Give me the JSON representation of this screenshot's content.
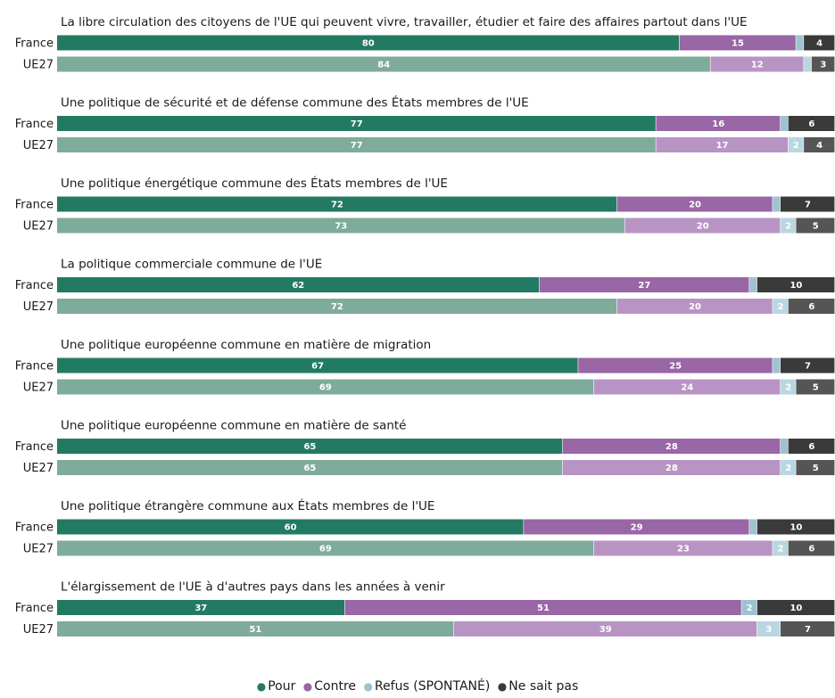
{
  "chart_data": {
    "type": "bar",
    "orientation": "horizontal",
    "stacked": true,
    "xlim": [
      0,
      100
    ],
    "legend_position": "bottom",
    "row_labels": [
      "France",
      "UE27"
    ],
    "series": [
      {
        "name": "Pour",
        "color_france": "#237a62",
        "color_ue27": "#7fab9a"
      },
      {
        "name": "Contre",
        "color_france": "#9966a6",
        "color_ue27": "#b894c4"
      },
      {
        "name": "Refus (SPONTANÉ)",
        "color_france": "#9ec2d0",
        "color_ue27": "#b9d7e1"
      },
      {
        "name": "Ne sait pas",
        "color_france": "#3a3a3a",
        "color_ue27": "#555555"
      }
    ],
    "questions": [
      {
        "title": "La libre circulation des citoyens de l'UE qui peuvent vivre, travailler, étudier et faire des affaires partout dans l'UE",
        "france": [
          80,
          15,
          1,
          4
        ],
        "ue27": [
          84,
          12,
          1,
          3
        ]
      },
      {
        "title": "Une politique de sécurité et de défense commune des États membres de l'UE",
        "france": [
          77,
          16,
          1,
          6
        ],
        "ue27": [
          77,
          17,
          2,
          4
        ]
      },
      {
        "title": "Une politique énergétique commune des États membres de l'UE",
        "france": [
          72,
          20,
          1,
          7
        ],
        "ue27": [
          73,
          20,
          2,
          5
        ]
      },
      {
        "title": "La politique commerciale commune de l'UE",
        "france": [
          62,
          27,
          1,
          10
        ],
        "ue27": [
          72,
          20,
          2,
          6
        ]
      },
      {
        "title": "Une politique européenne commune en matière de migration",
        "france": [
          67,
          25,
          1,
          7
        ],
        "ue27": [
          69,
          24,
          2,
          5
        ]
      },
      {
        "title": "Une politique européenne commune en matière de santé",
        "france": [
          65,
          28,
          1,
          6
        ],
        "ue27": [
          65,
          28,
          2,
          5
        ]
      },
      {
        "title": "Une politique étrangère commune aux États membres de l'UE",
        "france": [
          60,
          29,
          1,
          10
        ],
        "ue27": [
          69,
          23,
          2,
          6
        ]
      },
      {
        "title": "L'élargissement de l'UE à d'autres pays dans les années à venir",
        "france": [
          37,
          51,
          2,
          10
        ],
        "ue27": [
          51,
          39,
          3,
          7
        ]
      }
    ]
  }
}
